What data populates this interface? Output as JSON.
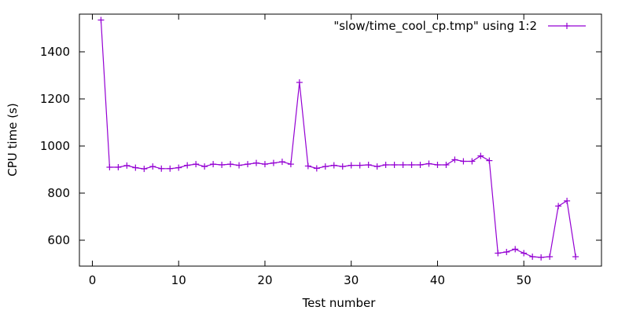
{
  "chart_data": {
    "type": "line",
    "xlabel": "Test number",
    "ylabel": "CPU time (s)",
    "xlim": [
      -1.5,
      59
    ],
    "ylim": [
      490,
      1560
    ],
    "xticks": [
      0,
      10,
      20,
      30,
      40,
      50
    ],
    "yticks": [
      600,
      800,
      1000,
      1200,
      1400
    ],
    "grid": false,
    "legend_position": "top-right",
    "series": [
      {
        "name": "\"slow/time_cool_cp.tmp\" using 1:2",
        "color": "#9400d3",
        "marker": "plus",
        "x": [
          1,
          2,
          3,
          4,
          5,
          6,
          7,
          8,
          9,
          10,
          11,
          12,
          13,
          14,
          15,
          16,
          17,
          18,
          19,
          20,
          21,
          22,
          23,
          24,
          25,
          26,
          27,
          28,
          29,
          30,
          31,
          32,
          33,
          34,
          35,
          36,
          37,
          38,
          39,
          40,
          41,
          42,
          43,
          44,
          45,
          46,
          47,
          48,
          49,
          50,
          51,
          52,
          53,
          54,
          55,
          56
        ],
        "y": [
          1535,
          910,
          910,
          917,
          908,
          903,
          913,
          904,
          904,
          908,
          918,
          923,
          913,
          923,
          920,
          923,
          918,
          923,
          928,
          923,
          928,
          933,
          923,
          1270,
          915,
          905,
          913,
          918,
          913,
          918,
          918,
          920,
          913,
          920,
          920,
          920,
          920,
          920,
          925,
          920,
          920,
          942,
          935,
          935,
          958,
          938,
          545,
          550,
          562,
          545,
          530,
          527,
          530,
          745,
          767,
          530
        ]
      }
    ]
  }
}
